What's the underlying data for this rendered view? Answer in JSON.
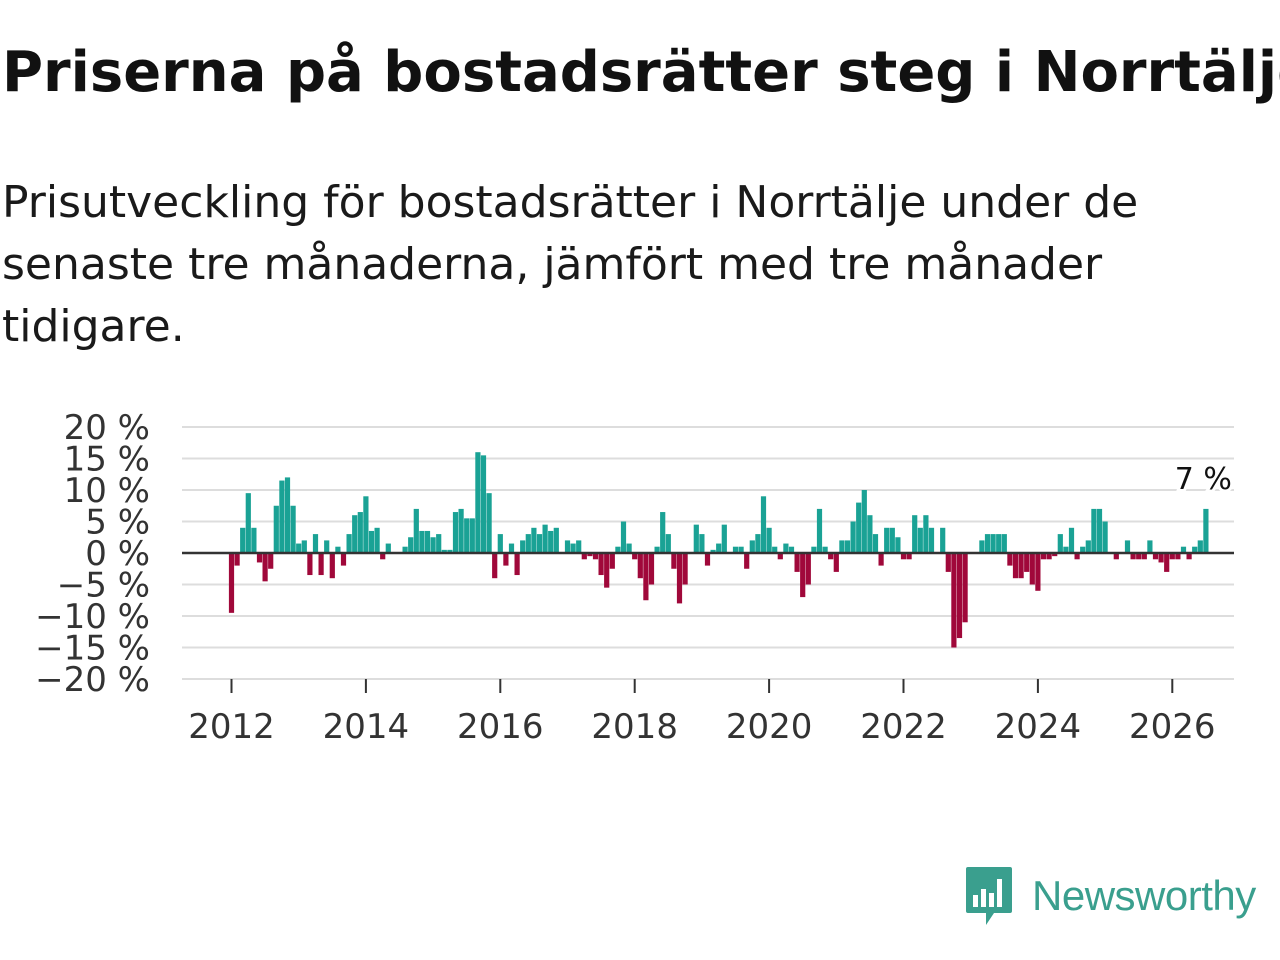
{
  "header": {
    "title": "Priserna på bostadsrätter steg i Norrtälje",
    "subtitle": "Prisutveckling för bostadsrätter i Norrtälje under de senaste tre månaderna, jämfört med tre månader tidigare."
  },
  "logo": {
    "text": "Newsworthy",
    "icon": "newsworthy-logo-icon",
    "color": "#3a9f8e"
  },
  "colors": {
    "positive": "#1aa295",
    "negative": "#a0083a",
    "grid": "#dddddd",
    "zero": "#333333"
  },
  "chart_data": {
    "type": "bar",
    "title": "",
    "xlabel": "",
    "ylabel": "",
    "ylim": [
      -20,
      20
    ],
    "y_ticks": [
      20,
      15,
      10,
      5,
      0,
      -5,
      -10,
      -15,
      -20
    ],
    "y_tick_labels": [
      "20 %",
      "15 %",
      "10 %",
      "5 %",
      "0 %",
      "−5 %",
      "−10 %",
      "−15 %",
      "−20 %"
    ],
    "x_ticks": [
      2012,
      2014,
      2016,
      2018,
      2020,
      2022,
      2024,
      2026
    ],
    "x_tick_labels": [
      "2012",
      "2014",
      "2016",
      "2018",
      "2020",
      "2022",
      "2024",
      "2026"
    ],
    "start": "2012-01",
    "end_label": "7 %",
    "values": [
      -9.5,
      -2,
      4,
      9.5,
      4,
      -1.5,
      -4.5,
      -2.5,
      7.5,
      11.5,
      12,
      7.5,
      1.5,
      2,
      -3.5,
      3,
      -3.5,
      2,
      -4,
      1,
      -2,
      3,
      6,
      6.5,
      9,
      3.5,
      4,
      -1,
      1.5,
      0,
      0,
      1,
      2.5,
      7,
      3.5,
      3.5,
      2.5,
      3,
      0.5,
      0.5,
      6.5,
      7,
      5.5,
      5.5,
      16,
      15.5,
      9.5,
      -4,
      3,
      -2,
      1.5,
      -3.5,
      2,
      3,
      4,
      3,
      4.5,
      3.5,
      4,
      0,
      2,
      1.5,
      2,
      -1,
      -0.5,
      -1,
      -3.5,
      -5.5,
      -2.5,
      1,
      5,
      1.5,
      -1,
      -4,
      -7.5,
      -5,
      1,
      6.5,
      3,
      -2.5,
      -8,
      -5,
      0,
      4.5,
      3,
      -2,
      0.5,
      1.5,
      4.5,
      0,
      1,
      1,
      -2.5,
      2,
      3,
      9,
      4,
      1,
      -1,
      1.5,
      1,
      -3,
      -7,
      -5,
      1,
      7,
      1,
      -1,
      -3,
      2,
      2,
      5,
      8,
      10,
      6,
      3,
      -2,
      4,
      4,
      2.5,
      -1,
      -1,
      6,
      4,
      6,
      4,
      0,
      4,
      -3,
      -15,
      -13.5,
      -11,
      0,
      0,
      2,
      3,
      3,
      3,
      3,
      -2,
      -4,
      -4,
      -3,
      -5,
      -6,
      -1,
      -1,
      -0.5,
      3,
      1,
      4,
      -1,
      1,
      2,
      7,
      7,
      5,
      0,
      -1,
      0,
      2,
      -1,
      -1,
      -1,
      2,
      -1,
      -1.5,
      -3,
      -1,
      -1,
      1,
      -1,
      1,
      2,
      7
    ]
  }
}
